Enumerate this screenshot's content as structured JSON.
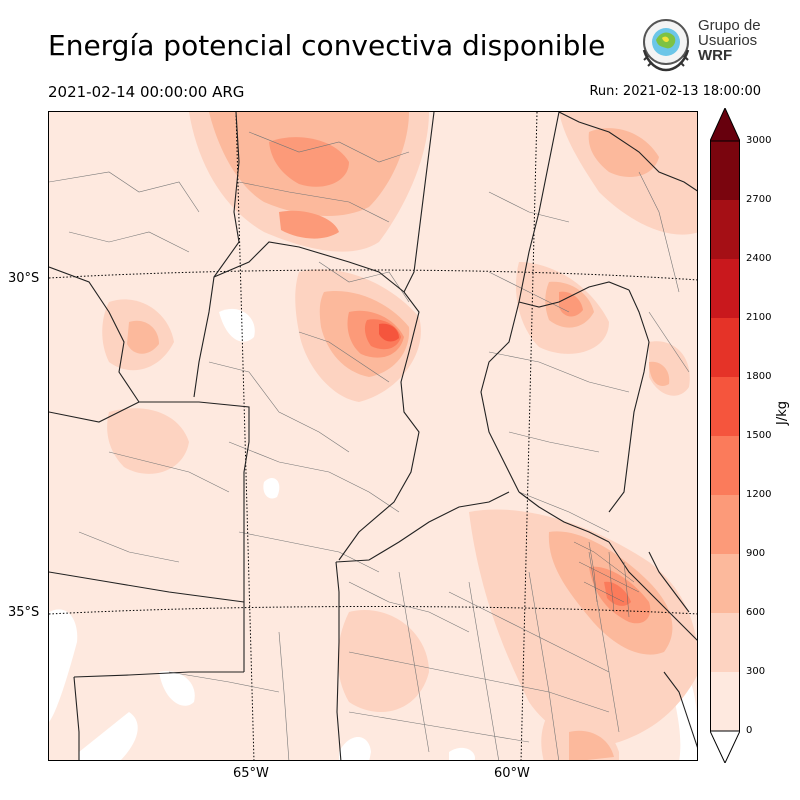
{
  "title": "Energía potencial convectiva disponible",
  "valid_time": "2021-02-14 00:00:00 ARG",
  "run_time": "Run: 2021-02-13 18:00:00",
  "logo": {
    "line1": "Grupo de",
    "line2": "Usuarios",
    "line3": "WRF"
  },
  "map": {
    "lat_labels": [
      "30°S",
      "35°S"
    ],
    "lon_labels": [
      "65°W",
      "60°W"
    ]
  },
  "colorbar": {
    "unit_label": "J/kg",
    "ticks": [
      "0",
      "300",
      "600",
      "900",
      "1200",
      "1500",
      "1800",
      "2100",
      "2400",
      "2700",
      "3000"
    ],
    "colors": [
      "#fee9df",
      "#fdd3c1",
      "#fcb99c",
      "#fc9a79",
      "#fb7b5b",
      "#f5553d",
      "#e53328",
      "#c9181d",
      "#a50f15",
      "#7a050e"
    ]
  },
  "chart_data": {
    "type": "heatmap",
    "title": "Energía potencial convectiva disponible",
    "variable_unit": "J/kg",
    "levels": [
      0,
      300,
      600,
      900,
      1200,
      1500,
      1800,
      2100,
      2400,
      2700,
      3000
    ],
    "extend": "both",
    "graticule": {
      "lat_labels": [
        "30°S",
        "35°S"
      ],
      "lon_labels": [
        "65°W",
        "60°W"
      ]
    },
    "valid_time": "2021-02-14 00:00:00 ARG",
    "run": "2021-02-13 18:00:00"
  }
}
